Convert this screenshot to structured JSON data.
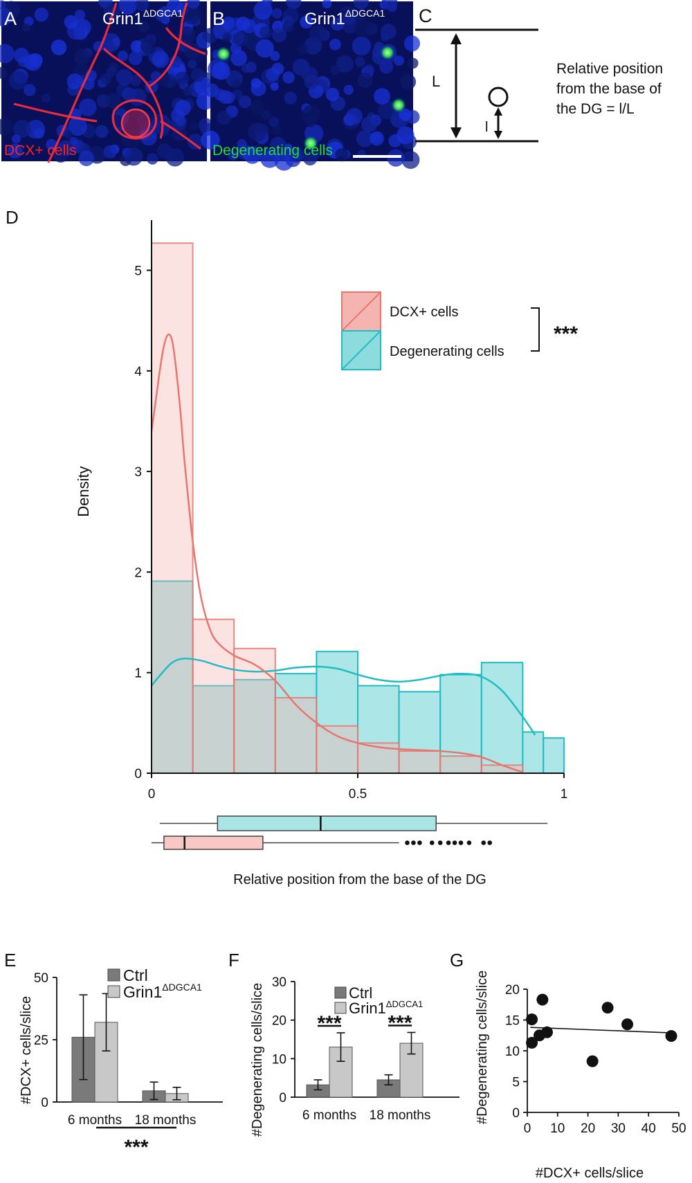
{
  "panels": {
    "A": {
      "letter": "A",
      "genotype": "Grin1",
      "genotype_sup": "ΔDGCA1",
      "caption": "DCX+ cells"
    },
    "B": {
      "letter": "B",
      "genotype": "Grin1",
      "genotype_sup": "ΔDGCA1",
      "caption": "Degenerating cells"
    },
    "C": {
      "letter": "C",
      "big_label": "L",
      "small_label": "l",
      "text_lines": [
        "Relative position",
        "from the base of",
        "the DG = l/L"
      ]
    },
    "D": {
      "letter": "D"
    },
    "E": {
      "letter": "E"
    },
    "F": {
      "letter": "F"
    },
    "G": {
      "letter": "G"
    }
  },
  "colors": {
    "dcx": "#E8756F",
    "dcx_fill": "#F4B5B0",
    "deg": "#20BCC4",
    "deg_fill": "#8DDCDD",
    "ctrl": "#7A7A7A",
    "grin": "#C8C8C8"
  },
  "chart_data": [
    {
      "id": "D",
      "type": "histogram",
      "xlabel": "Relative position from the base of the DG",
      "ylabel": "Density",
      "xlim": [
        0,
        1
      ],
      "ylim": [
        0,
        5.5
      ],
      "xticks": [
        {
          "v": 0,
          "label": "0"
        },
        {
          "v": 0.5,
          "label": "0.5"
        },
        {
          "v": 1,
          "label": "1"
        }
      ],
      "yticks": [
        {
          "v": 0,
          "label": "0"
        },
        {
          "v": 1,
          "label": "1"
        },
        {
          "v": 2,
          "label": "2"
        },
        {
          "v": 3,
          "label": "3"
        },
        {
          "v": 4,
          "label": "4"
        },
        {
          "v": 5,
          "label": "5"
        }
      ],
      "legend_position": "top-right",
      "significance": "***",
      "series": [
        {
          "name": "DCX+ cells",
          "bins": [
            [
              0,
              0.1,
              5.27
            ],
            [
              0.1,
              0.2,
              1.53
            ],
            [
              0.2,
              0.3,
              1.24
            ],
            [
              0.3,
              0.4,
              0.75
            ],
            [
              0.4,
              0.5,
              0.47
            ],
            [
              0.5,
              0.6,
              0.3
            ],
            [
              0.6,
              0.7,
              0.22
            ],
            [
              0.7,
              0.8,
              0.17
            ],
            [
              0.8,
              0.9,
              0.08
            ]
          ],
          "kde": [
            [
              0,
              3.4
            ],
            [
              0.01,
              3.7
            ],
            [
              0.02,
              4.0
            ],
            [
              0.03,
              4.25
            ],
            [
              0.04,
              4.36
            ],
            [
              0.05,
              4.3
            ],
            [
              0.06,
              4.0
            ],
            [
              0.07,
              3.6
            ],
            [
              0.08,
              3.1
            ],
            [
              0.1,
              2.3
            ],
            [
              0.12,
              1.75
            ],
            [
              0.14,
              1.45
            ],
            [
              0.16,
              1.3
            ],
            [
              0.2,
              1.17
            ],
            [
              0.25,
              1.08
            ],
            [
              0.3,
              0.92
            ],
            [
              0.35,
              0.68
            ],
            [
              0.4,
              0.5
            ],
            [
              0.45,
              0.37
            ],
            [
              0.5,
              0.3
            ],
            [
              0.55,
              0.26
            ],
            [
              0.6,
              0.24
            ],
            [
              0.65,
              0.23
            ],
            [
              0.7,
              0.22
            ],
            [
              0.75,
              0.2
            ],
            [
              0.8,
              0.16
            ],
            [
              0.85,
              0.08
            ],
            [
              0.9,
              0.01
            ]
          ]
        },
        {
          "name": "Degenerating cells",
          "bins": [
            [
              0,
              0.1,
              1.91
            ],
            [
              0.1,
              0.2,
              0.87
            ],
            [
              0.2,
              0.3,
              0.93
            ],
            [
              0.3,
              0.4,
              0.99
            ],
            [
              0.4,
              0.5,
              1.21
            ],
            [
              0.5,
              0.6,
              0.87
            ],
            [
              0.6,
              0.7,
              0.81
            ],
            [
              0.7,
              0.8,
              0.98
            ],
            [
              0.8,
              0.9,
              1.1
            ],
            [
              0.9,
              0.95,
              0.41
            ],
            [
              0.95,
              1.0,
              0.35
            ]
          ],
          "kde": [
            [
              0,
              0.87
            ],
            [
              0.02,
              0.97
            ],
            [
              0.05,
              1.1
            ],
            [
              0.08,
              1.14
            ],
            [
              0.12,
              1.12
            ],
            [
              0.16,
              1.07
            ],
            [
              0.2,
              1.03
            ],
            [
              0.25,
              1.01
            ],
            [
              0.3,
              1.02
            ],
            [
              0.35,
              1.05
            ],
            [
              0.4,
              1.06
            ],
            [
              0.45,
              1.04
            ],
            [
              0.5,
              0.98
            ],
            [
              0.55,
              0.93
            ],
            [
              0.6,
              0.91
            ],
            [
              0.65,
              0.93
            ],
            [
              0.7,
              0.97
            ],
            [
              0.75,
              0.99
            ],
            [
              0.8,
              0.96
            ],
            [
              0.85,
              0.82
            ],
            [
              0.9,
              0.56
            ],
            [
              0.93,
              0.38
            ]
          ]
        }
      ],
      "boxplots": [
        {
          "name": "Degenerating cells",
          "whisker_low": 0.02,
          "q1": 0.16,
          "median": 0.41,
          "q3": 0.69,
          "whisker_high": 0.96,
          "outliers": []
        },
        {
          "name": "DCX+ cells",
          "whisker_low": 0.0,
          "q1": 0.03,
          "median": 0.08,
          "q3": 0.27,
          "whisker_high": 0.6,
          "outliers": [
            0.62,
            0.635,
            0.65,
            0.68,
            0.7,
            0.72,
            0.735,
            0.75,
            0.77,
            0.805,
            0.82
          ]
        }
      ]
    },
    {
      "id": "E",
      "type": "bar",
      "ylabel": "#DCX+ cells/slice",
      "ylim": [
        0,
        50
      ],
      "yticks": [
        0,
        25,
        50
      ],
      "categories": [
        "6 months",
        "18 months"
      ],
      "legend_position": "top-right",
      "series": [
        {
          "name": "Ctrl",
          "values": [
            26,
            4.5
          ],
          "errors": [
            17,
            3.5
          ]
        },
        {
          "name": "Grin1",
          "name_sup": "ΔDGCA1",
          "values": [
            32,
            3.4
          ],
          "errors": [
            11.5,
            2.5
          ]
        }
      ],
      "significance": "***"
    },
    {
      "id": "F",
      "type": "bar",
      "ylabel": "#Degenerating cells/slice",
      "ylim": [
        0,
        30
      ],
      "yticks": [
        0,
        10,
        20,
        30
      ],
      "categories": [
        "6 months",
        "18 months"
      ],
      "legend_position": "top-right",
      "series": [
        {
          "name": "Ctrl",
          "values": [
            3.2,
            4.5
          ],
          "errors": [
            1.3,
            1.3
          ]
        },
        {
          "name": "Grin1",
          "name_sup": "ΔDGCA1",
          "values": [
            13,
            14
          ],
          "errors": [
            3.7,
            2.8
          ]
        }
      ],
      "significance": [
        "***",
        "***"
      ]
    },
    {
      "id": "G",
      "type": "scatter",
      "xlabel": "#DCX+ cells/slice",
      "ylabel": "#Degenerating cells/slice",
      "xlim": [
        0,
        50
      ],
      "ylim": [
        0,
        20
      ],
      "xticks": [
        0,
        10,
        20,
        30,
        40,
        50
      ],
      "yticks": [
        0,
        5,
        10,
        15,
        20
      ],
      "points": [
        [
          1.5,
          15.1
        ],
        [
          1.5,
          11.3
        ],
        [
          4.0,
          12.5
        ],
        [
          5.0,
          18.3
        ],
        [
          6.5,
          13.0
        ],
        [
          21.5,
          8.3
        ],
        [
          26.5,
          17.0
        ],
        [
          33.0,
          14.3
        ],
        [
          47.5,
          12.4
        ]
      ],
      "trendline": [
        [
          1,
          13.8
        ],
        [
          48,
          12.9
        ]
      ]
    }
  ]
}
